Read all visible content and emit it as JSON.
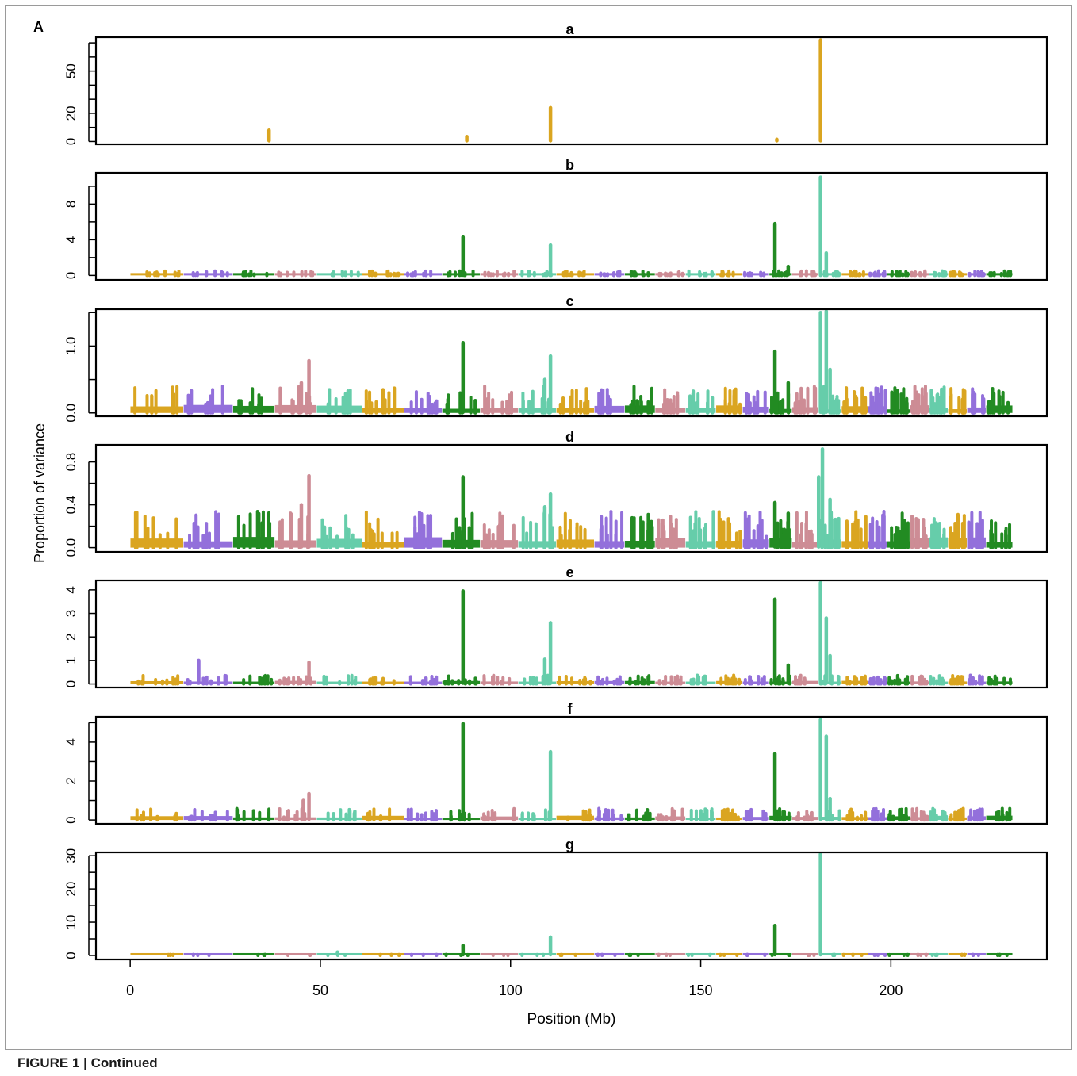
{
  "figure": {
    "panel_letter": "A",
    "xlabel": "Position (Mb)",
    "ylabel": "Proportion of variance",
    "x_ticks": [
      0,
      50,
      100,
      150,
      200
    ],
    "xlim": [
      -9,
      241
    ],
    "chromosome_colors": [
      "#DAA520",
      "#9370DB",
      "#228B22",
      "#CD8C95",
      "#66CDAA"
    ],
    "chromosome_bounds_mb": [
      0,
      14,
      27,
      38,
      49,
      61,
      72,
      82,
      92,
      102,
      112,
      122,
      130,
      138,
      146,
      154,
      161,
      168,
      174,
      181,
      187,
      194,
      199,
      205,
      210,
      215,
      220,
      225,
      232
    ]
  },
  "caption": {
    "label": "FIGURE 1 |",
    "text": "Continued"
  },
  "chart_data": [
    {
      "type": "line",
      "title": "a",
      "ylim": [
        -2,
        74
      ],
      "yticks": [
        0,
        20,
        50
      ],
      "minor_yticks": [
        10,
        30,
        40,
        60,
        70
      ],
      "background": "none",
      "peaks": [
        {
          "x": 36.5,
          "y": 8,
          "color": "#DAA520"
        },
        {
          "x": 88.5,
          "y": 3.5,
          "color": "#DAA520"
        },
        {
          "x": 110.5,
          "y": 24,
          "color": "#DAA520"
        },
        {
          "x": 170,
          "y": 1.5,
          "color": "#DAA520"
        },
        {
          "x": 181.5,
          "y": 72,
          "color": "#DAA520"
        }
      ]
    },
    {
      "type": "line",
      "title": "b",
      "ylim": [
        -0.5,
        11.5
      ],
      "yticks": [
        0,
        4,
        8
      ],
      "minor_yticks": [
        2,
        6,
        10
      ],
      "background": "low",
      "bg_scale": 0.3,
      "peaks": [
        {
          "x": 87.5,
          "y": 4.3,
          "color": "#228B22"
        },
        {
          "x": 110.5,
          "y": 3.4,
          "color": "#66CDAA"
        },
        {
          "x": 169.5,
          "y": 5.8,
          "color": "#228B22"
        },
        {
          "x": 173,
          "y": 1.0,
          "color": "#228B22"
        },
        {
          "x": 181.5,
          "y": 11.0,
          "color": "#66CDAA"
        },
        {
          "x": 183,
          "y": 2.5,
          "color": "#66CDAA"
        }
      ]
    },
    {
      "type": "line",
      "title": "c",
      "ylim": [
        -0.05,
        1.55
      ],
      "yticks": [
        0.0,
        1.0
      ],
      "minor_yticks": [
        0.5,
        1.5
      ],
      "background": "high",
      "bg_scale": 0.2,
      "peaks": [
        {
          "x": 45,
          "y": 0.45,
          "color": "#CD8C95"
        },
        {
          "x": 47,
          "y": 0.78,
          "color": "#CD8C95"
        },
        {
          "x": 87.5,
          "y": 1.05,
          "color": "#228B22"
        },
        {
          "x": 109,
          "y": 0.5,
          "color": "#66CDAA"
        },
        {
          "x": 110.5,
          "y": 0.85,
          "color": "#66CDAA"
        },
        {
          "x": 169.5,
          "y": 0.92,
          "color": "#228B22"
        },
        {
          "x": 173,
          "y": 0.45,
          "color": "#228B22"
        },
        {
          "x": 181.5,
          "y": 1.5,
          "color": "#66CDAA"
        },
        {
          "x": 183,
          "y": 1.52,
          "color": "#66CDAA"
        },
        {
          "x": 184,
          "y": 0.65,
          "color": "#66CDAA"
        }
      ]
    },
    {
      "type": "line",
      "title": "d",
      "ylim": [
        -0.04,
        0.96
      ],
      "yticks": [
        0.0,
        0.4,
        0.8
      ],
      "minor_yticks": [
        0.2,
        0.6
      ],
      "background": "high",
      "bg_scale": 0.17,
      "peaks": [
        {
          "x": 45,
          "y": 0.4,
          "color": "#CD8C95"
        },
        {
          "x": 47,
          "y": 0.67,
          "color": "#CD8C95"
        },
        {
          "x": 87.5,
          "y": 0.66,
          "color": "#228B22"
        },
        {
          "x": 109,
          "y": 0.38,
          "color": "#66CDAA"
        },
        {
          "x": 110.5,
          "y": 0.5,
          "color": "#66CDAA"
        },
        {
          "x": 169.5,
          "y": 0.42,
          "color": "#228B22"
        },
        {
          "x": 173,
          "y": 0.32,
          "color": "#228B22"
        },
        {
          "x": 181,
          "y": 0.66,
          "color": "#66CDAA"
        },
        {
          "x": 182,
          "y": 0.92,
          "color": "#66CDAA"
        },
        {
          "x": 184,
          "y": 0.45,
          "color": "#66CDAA"
        }
      ]
    },
    {
      "type": "line",
      "title": "e",
      "ylim": [
        -0.15,
        4.4
      ],
      "yticks": [
        0,
        1,
        2,
        3,
        4
      ],
      "minor_yticks": [],
      "background": "low",
      "bg_scale": 0.22,
      "peaks": [
        {
          "x": 18,
          "y": 1.0,
          "color": "#9370DB"
        },
        {
          "x": 47,
          "y": 0.92,
          "color": "#CD8C95"
        },
        {
          "x": 87.5,
          "y": 3.95,
          "color": "#228B22"
        },
        {
          "x": 109,
          "y": 1.05,
          "color": "#66CDAA"
        },
        {
          "x": 110.5,
          "y": 2.6,
          "color": "#66CDAA"
        },
        {
          "x": 169.5,
          "y": 3.6,
          "color": "#228B22"
        },
        {
          "x": 173,
          "y": 0.8,
          "color": "#228B22"
        },
        {
          "x": 181.5,
          "y": 4.3,
          "color": "#66CDAA"
        },
        {
          "x": 183,
          "y": 2.8,
          "color": "#66CDAA"
        },
        {
          "x": 184,
          "y": 1.2,
          "color": "#66CDAA"
        }
      ]
    },
    {
      "type": "line",
      "title": "f",
      "ylim": [
        -0.2,
        5.3
      ],
      "yticks": [
        0,
        2,
        4
      ],
      "minor_yticks": [
        1,
        3,
        5
      ],
      "background": "low",
      "bg_scale": 0.35,
      "peaks": [
        {
          "x": 45.5,
          "y": 1.0,
          "color": "#CD8C95"
        },
        {
          "x": 47,
          "y": 1.35,
          "color": "#CD8C95"
        },
        {
          "x": 87.5,
          "y": 4.95,
          "color": "#228B22"
        },
        {
          "x": 110.5,
          "y": 3.5,
          "color": "#66CDAA"
        },
        {
          "x": 169.5,
          "y": 3.4,
          "color": "#228B22"
        },
        {
          "x": 181.5,
          "y": 5.15,
          "color": "#66CDAA"
        },
        {
          "x": 183,
          "y": 4.3,
          "color": "#66CDAA"
        },
        {
          "x": 184,
          "y": 1.1,
          "color": "#66CDAA"
        }
      ]
    },
    {
      "type": "line",
      "title": "g",
      "ylim": [
        -1.2,
        31
      ],
      "yticks": [
        0,
        10,
        20,
        30
      ],
      "minor_yticks": [
        5,
        15,
        25
      ],
      "background": "flat",
      "bg_scale": 0.3,
      "peaks": [
        {
          "x": 54.5,
          "y": 1.0,
          "color": "#66CDAA"
        },
        {
          "x": 87.5,
          "y": 3.0,
          "color": "#228B22"
        },
        {
          "x": 110.5,
          "y": 5.5,
          "color": "#66CDAA"
        },
        {
          "x": 169.5,
          "y": 9.0,
          "color": "#228B22"
        },
        {
          "x": 181.5,
          "y": 30.5,
          "color": "#66CDAA"
        }
      ]
    }
  ]
}
